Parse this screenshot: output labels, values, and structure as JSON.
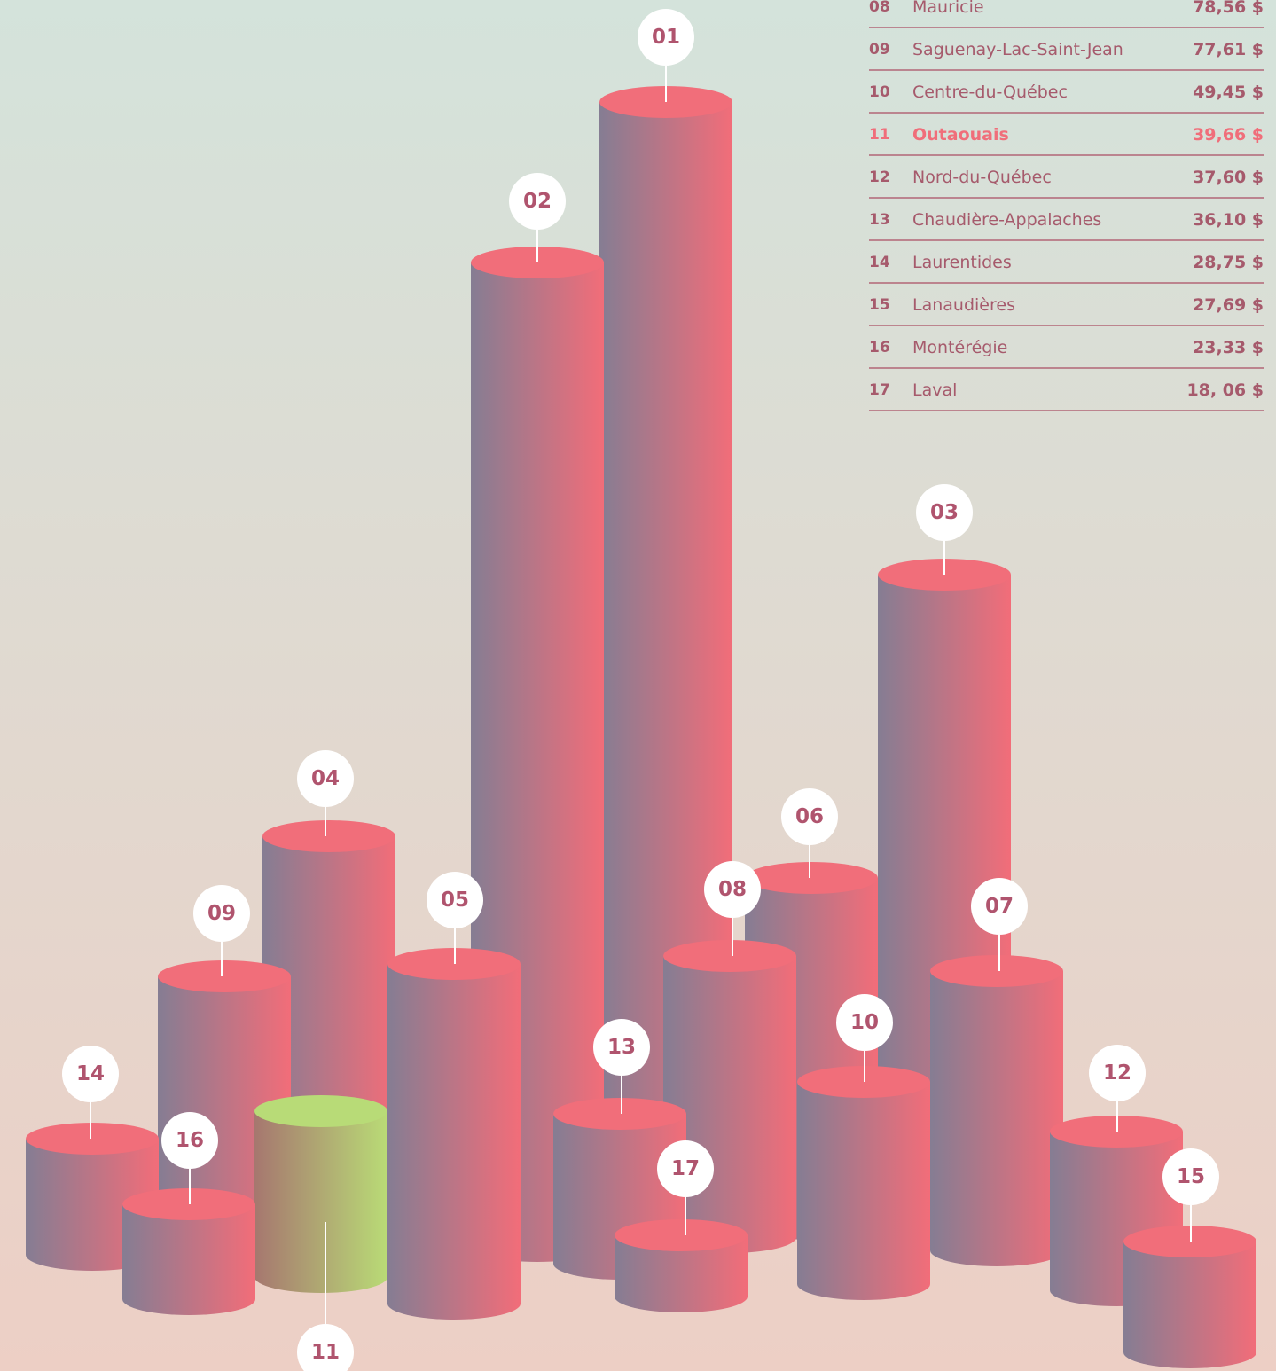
{
  "table": {
    "rows": [
      [
        "08",
        "Mauricie",
        "78,56 $"
      ],
      [
        "09",
        "Saguenay-Lac-Saint-Jean",
        "77,61 $"
      ],
      [
        "10",
        "Centre-du-Québec",
        "49,45 $"
      ],
      [
        "11",
        "Outaouais",
        "39,66 $"
      ],
      [
        "12",
        "Nord-du-Québec",
        "37,60 $"
      ],
      [
        "13",
        "Chaudière-Appalaches",
        "36,10 $"
      ],
      [
        "14",
        "Laurentides",
        "28,75 $"
      ],
      [
        "15",
        "Lanaudières",
        "27,69 $"
      ],
      [
        "16",
        "Montérégie",
        "23,33 $"
      ],
      [
        "17",
        "Laval",
        "18, 06 $"
      ]
    ],
    "highlight": 3
  },
  "cylinders": [
    {
      "label": "01"
    },
    {
      "label": "02"
    },
    {
      "label": "03"
    },
    {
      "label": "04"
    },
    {
      "label": "05"
    },
    {
      "label": "06"
    },
    {
      "label": "07"
    },
    {
      "label": "08"
    },
    {
      "label": "09"
    },
    {
      "label": "10"
    },
    {
      "label": "11",
      "highlight": true
    },
    {
      "label": "12"
    },
    {
      "label": "13"
    },
    {
      "label": "14"
    },
    {
      "label": "15"
    },
    {
      "label": "16"
    },
    {
      "label": "17"
    }
  ]
}
